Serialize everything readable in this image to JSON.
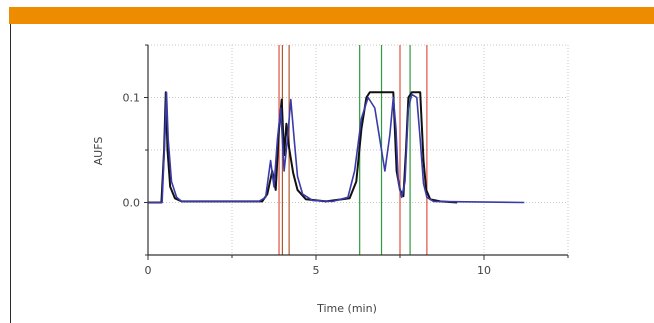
{
  "colors": {
    "top_bar": "#ee8c00",
    "axis": "#333333",
    "grid": "#c8c8c8",
    "marker_red": "#e05040",
    "marker_brown": "#b05a2a",
    "marker_green": "#2f9a3c",
    "trace_black": "#111111",
    "trace_blue": "#3a3aa8"
  },
  "chart_data": {
    "type": "line",
    "xlabel": "Time (min)",
    "ylabel": "AUFS",
    "xlim": [
      0,
      12.5
    ],
    "ylim": [
      -0.05,
      0.15
    ],
    "xticks": [
      0,
      5,
      10
    ],
    "xtick_labels": [
      "0",
      "5",
      "10"
    ],
    "yticks": [
      0.0,
      0.1
    ],
    "ytick_labels": [
      "0.0",
      "0.1"
    ],
    "grid": true,
    "vertical_markers": [
      {
        "x": 3.9,
        "color": "red"
      },
      {
        "x": 4.0,
        "color": "brown"
      },
      {
        "x": 4.2,
        "color": "brown"
      },
      {
        "x": 6.3,
        "color": "green"
      },
      {
        "x": 6.95,
        "color": "green"
      },
      {
        "x": 7.5,
        "color": "red"
      },
      {
        "x": 7.8,
        "color": "green"
      },
      {
        "x": 8.3,
        "color": "red"
      }
    ],
    "series": [
      {
        "color": "black",
        "points": [
          [
            0,
            0
          ],
          [
            0.4,
            0
          ],
          [
            0.48,
            0.05
          ],
          [
            0.53,
            0.105
          ],
          [
            0.58,
            0.05
          ],
          [
            0.66,
            0.015
          ],
          [
            0.8,
            0.004
          ],
          [
            1.0,
            0.001
          ],
          [
            3.4,
            0.001
          ],
          [
            3.55,
            0.008
          ],
          [
            3.7,
            0.03
          ],
          [
            3.8,
            0.012
          ],
          [
            3.9,
            0.07
          ],
          [
            3.98,
            0.098
          ],
          [
            4.05,
            0.045
          ],
          [
            4.12,
            0.075
          ],
          [
            4.2,
            0.052
          ],
          [
            4.32,
            0.028
          ],
          [
            4.45,
            0.012
          ],
          [
            4.7,
            0.003
          ],
          [
            5.3,
            0.001
          ],
          [
            6.0,
            0.004
          ],
          [
            6.2,
            0.02
          ],
          [
            6.35,
            0.07
          ],
          [
            6.5,
            0.1
          ],
          [
            6.6,
            0.105
          ],
          [
            7.3,
            0.105
          ],
          [
            7.4,
            0.03
          ],
          [
            7.5,
            0.012
          ],
          [
            7.6,
            0.006
          ],
          [
            7.68,
            0.05
          ],
          [
            7.75,
            0.1
          ],
          [
            7.85,
            0.105
          ],
          [
            8.1,
            0.105
          ],
          [
            8.2,
            0.04
          ],
          [
            8.28,
            0.012
          ],
          [
            8.4,
            0.003
          ],
          [
            8.7,
            0.001
          ],
          [
            9.2,
            0
          ]
        ]
      },
      {
        "color": "blue",
        "points": [
          [
            0,
            0
          ],
          [
            0.42,
            0
          ],
          [
            0.5,
            0.06
          ],
          [
            0.55,
            0.105
          ],
          [
            0.6,
            0.06
          ],
          [
            0.7,
            0.02
          ],
          [
            0.85,
            0.005
          ],
          [
            1.0,
            0.001
          ],
          [
            3.3,
            0.001
          ],
          [
            3.5,
            0.005
          ],
          [
            3.65,
            0.04
          ],
          [
            3.75,
            0.015
          ],
          [
            3.85,
            0.06
          ],
          [
            3.95,
            0.09
          ],
          [
            4.05,
            0.03
          ],
          [
            4.15,
            0.06
          ],
          [
            4.25,
            0.098
          ],
          [
            4.35,
            0.06
          ],
          [
            4.45,
            0.025
          ],
          [
            4.6,
            0.008
          ],
          [
            4.9,
            0.002
          ],
          [
            5.5,
            0.001
          ],
          [
            5.95,
            0.005
          ],
          [
            6.15,
            0.03
          ],
          [
            6.35,
            0.08
          ],
          [
            6.55,
            0.1
          ],
          [
            6.75,
            0.09
          ],
          [
            6.95,
            0.05
          ],
          [
            7.05,
            0.03
          ],
          [
            7.2,
            0.065
          ],
          [
            7.3,
            0.1
          ],
          [
            7.38,
            0.07
          ],
          [
            7.45,
            0.02
          ],
          [
            7.55,
            0.005
          ],
          [
            7.65,
            0.02
          ],
          [
            7.75,
            0.09
          ],
          [
            7.85,
            0.103
          ],
          [
            8.0,
            0.1
          ],
          [
            8.1,
            0.06
          ],
          [
            8.2,
            0.018
          ],
          [
            8.3,
            0.005
          ],
          [
            8.5,
            0.001
          ],
          [
            11.2,
            0
          ]
        ]
      }
    ]
  }
}
